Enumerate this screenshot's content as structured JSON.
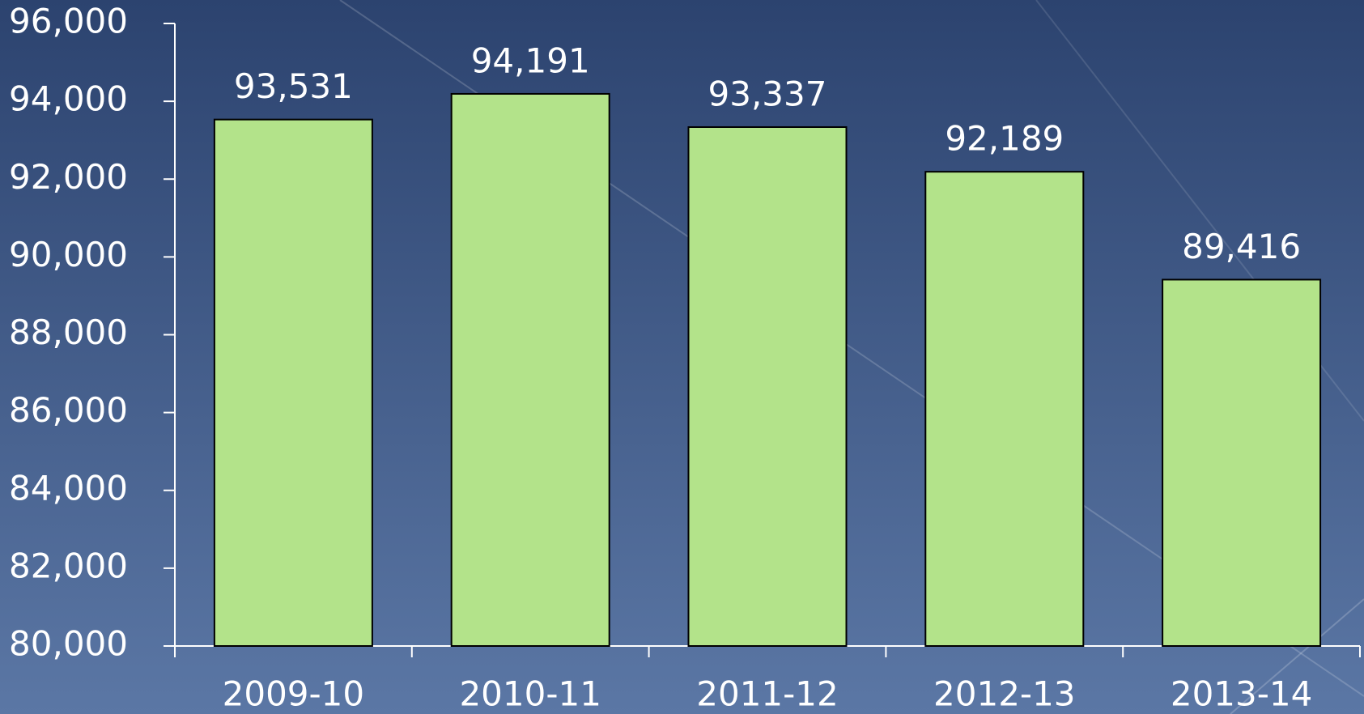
{
  "chart_data": {
    "type": "bar",
    "categories": [
      "2009-10",
      "2010-11",
      "2011-12",
      "2012-13",
      "2013-14"
    ],
    "values": [
      93531,
      94191,
      93337,
      92189,
      89416
    ],
    "value_labels": [
      "93,531",
      "94,191",
      "93,337",
      "92,189",
      "89,416"
    ],
    "color": "#b3e38a",
    "ylim": [
      80000,
      96000
    ],
    "yticks": [
      {
        "value": 80000,
        "label": "80,000"
      },
      {
        "value": 82000,
        "label": "82,000"
      },
      {
        "value": 84000,
        "label": "84,000"
      },
      {
        "value": 86000,
        "label": "86,000"
      },
      {
        "value": 88000,
        "label": "88,000"
      },
      {
        "value": 90000,
        "label": "90,000"
      },
      {
        "value": 92000,
        "label": "92,000"
      },
      {
        "value": 94000,
        "label": "94,000"
      },
      {
        "value": 96000,
        "label": "96,000"
      }
    ]
  }
}
